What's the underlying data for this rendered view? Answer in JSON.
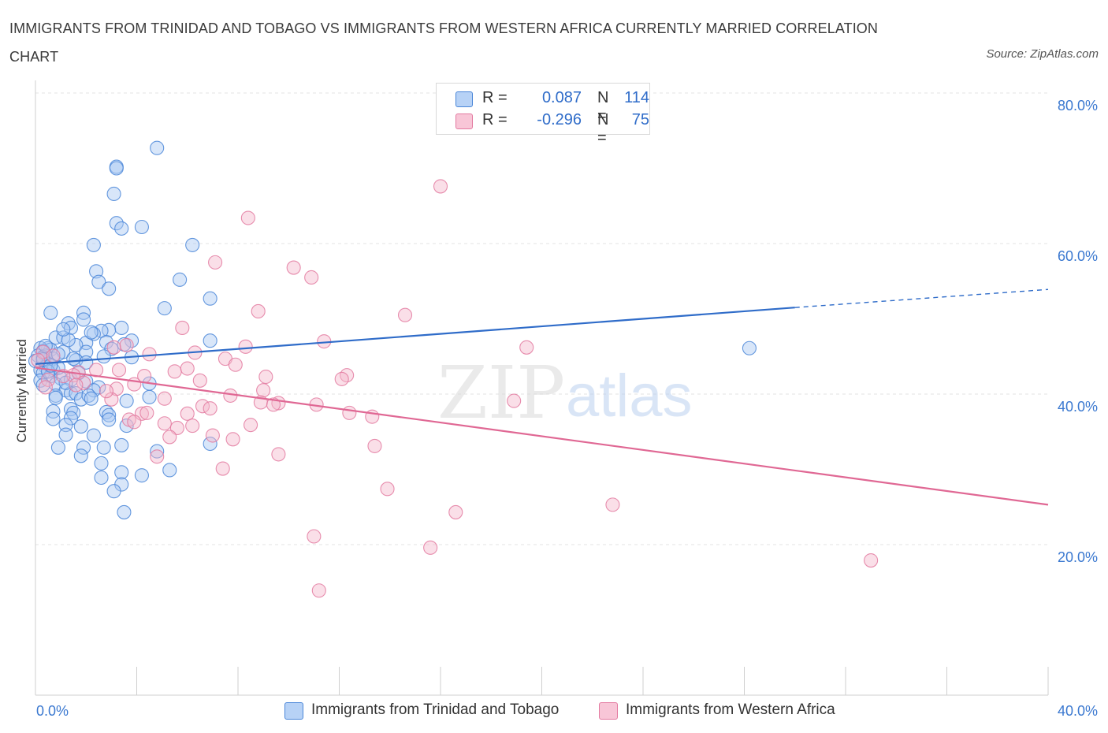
{
  "title": "IMMIGRANTS FROM TRINIDAD AND TOBAGO VS IMMIGRANTS FROM WESTERN AFRICA CURRENTLY MARRIED CORRELATION CHART",
  "source": "Source: ZipAtlas.com",
  "legend": {
    "rows": [
      {
        "r_label": "R =",
        "r_value": "0.087",
        "n_label": "N =",
        "n_value": "114"
      },
      {
        "r_label": "R =",
        "r_value": "-0.296",
        "n_label": "N =",
        "n_value": "75"
      }
    ]
  },
  "watermark": {
    "zip": "ZIP",
    "atlas": "atlas"
  },
  "chart_data": {
    "type": "scatter",
    "ylabel": "Currently Married",
    "xlabel": "",
    "xlim": [
      0,
      40
    ],
    "ylim": [
      0,
      80
    ],
    "x_tick_labels": [
      "0.0%",
      "40.0%"
    ],
    "y_tick_labels": [
      "80.0%",
      "60.0%",
      "40.0%",
      "20.0%"
    ],
    "y_ticks": [
      80,
      60,
      40,
      20
    ],
    "grid": true,
    "legend_position": "top-center",
    "colors": {
      "blue": "#4a86d8",
      "blue_fill": "#a9c8f2",
      "blue_line": "#2f6cc9",
      "pink": "#e37aa0",
      "pink_fill": "#f5b8cd",
      "pink_line": "#e06894",
      "axis_label": "#3a78d0",
      "grid": "#e3e3e3"
    },
    "series": [
      {
        "name": "Immigrants from Trinidad and Tobago",
        "color": "#4a86d8",
        "trend": {
          "x": [
            0,
            30
          ],
          "y": [
            44.0,
            51.5
          ],
          "dashed_to": [
            40,
            53.9
          ]
        },
        "points": [
          [
            4.8,
            72.7
          ],
          [
            3.2,
            70.2
          ],
          [
            3.2,
            70.0
          ],
          [
            3.1,
            66.6
          ],
          [
            3.2,
            62.7
          ],
          [
            3.4,
            62.0
          ],
          [
            4.2,
            62.2
          ],
          [
            2.3,
            59.8
          ],
          [
            6.2,
            59.8
          ],
          [
            2.4,
            56.3
          ],
          [
            5.7,
            55.2
          ],
          [
            2.5,
            54.9
          ],
          [
            2.9,
            54.0
          ],
          [
            6.9,
            52.7
          ],
          [
            5.1,
            51.4
          ],
          [
            1.9,
            50.8
          ],
          [
            1.9,
            49.9
          ],
          [
            1.3,
            49.4
          ],
          [
            1.4,
            48.8
          ],
          [
            3.4,
            48.8
          ],
          [
            2.9,
            48.5
          ],
          [
            2.6,
            48.4
          ],
          [
            2.3,
            48.0
          ],
          [
            0.8,
            47.5
          ],
          [
            1.1,
            47.5
          ],
          [
            3.8,
            47.1
          ],
          [
            6.9,
            47.1
          ],
          [
            2.8,
            46.9
          ],
          [
            2.0,
            46.8
          ],
          [
            3.5,
            46.6
          ],
          [
            1.6,
            46.5
          ],
          [
            0.5,
            46.1
          ],
          [
            0.2,
            46.1
          ],
          [
            0.6,
            45.9
          ],
          [
            0.3,
            45.7
          ],
          [
            2.0,
            45.6
          ],
          [
            1.1,
            45.6
          ],
          [
            0.1,
            45.1
          ],
          [
            0.4,
            45.1
          ],
          [
            0.3,
            44.9
          ],
          [
            0.7,
            44.7
          ],
          [
            1.6,
            44.5
          ],
          [
            0.0,
            44.4
          ],
          [
            3.8,
            44.9
          ],
          [
            0.5,
            44.0
          ],
          [
            0.4,
            43.6
          ],
          [
            0.2,
            43.2
          ],
          [
            0.7,
            43.2
          ],
          [
            0.3,
            42.8
          ],
          [
            0.6,
            42.4
          ],
          [
            1.0,
            42.1
          ],
          [
            0.2,
            41.8
          ],
          [
            1.4,
            41.9
          ],
          [
            0.8,
            41.3
          ],
          [
            2.0,
            41.7
          ],
          [
            2.5,
            40.9
          ],
          [
            4.5,
            41.4
          ],
          [
            1.2,
            40.5
          ],
          [
            2.3,
            40.5
          ],
          [
            0.3,
            41.2
          ],
          [
            1.4,
            40.1
          ],
          [
            1.6,
            40.1
          ],
          [
            0.8,
            39.8
          ],
          [
            0.8,
            39.5
          ],
          [
            1.8,
            39.3
          ],
          [
            2.1,
            39.8
          ],
          [
            2.2,
            39.4
          ],
          [
            3.6,
            39.1
          ],
          [
            4.5,
            39.6
          ],
          [
            1.4,
            38.0
          ],
          [
            0.7,
            37.7
          ],
          [
            1.5,
            37.5
          ],
          [
            2.8,
            37.6
          ],
          [
            2.9,
            37.2
          ],
          [
            0.7,
            36.7
          ],
          [
            1.4,
            36.8
          ],
          [
            2.9,
            36.6
          ],
          [
            1.2,
            35.9
          ],
          [
            1.8,
            35.7
          ],
          [
            3.6,
            35.8
          ],
          [
            1.2,
            34.6
          ],
          [
            2.3,
            34.5
          ],
          [
            3.4,
            33.2
          ],
          [
            0.9,
            32.9
          ],
          [
            1.9,
            32.9
          ],
          [
            2.7,
            32.9
          ],
          [
            4.8,
            32.4
          ],
          [
            6.9,
            33.4
          ],
          [
            1.8,
            31.8
          ],
          [
            2.6,
            30.8
          ],
          [
            4.2,
            29.2
          ],
          [
            5.3,
            29.9
          ],
          [
            2.6,
            28.9
          ],
          [
            3.4,
            29.6
          ],
          [
            3.4,
            28.0
          ],
          [
            3.1,
            27.1
          ],
          [
            3.5,
            24.3
          ],
          [
            28.2,
            46.1
          ],
          [
            0.6,
            50.8
          ],
          [
            1.5,
            44.7
          ],
          [
            0.9,
            43.5
          ],
          [
            2.2,
            48.2
          ],
          [
            3.0,
            46.0
          ],
          [
            1.7,
            42.8
          ],
          [
            0.4,
            46.4
          ],
          [
            1.3,
            47.2
          ],
          [
            2.7,
            45.0
          ],
          [
            0.9,
            45.3
          ],
          [
            0.5,
            43.0
          ],
          [
            1.2,
            41.5
          ],
          [
            2.0,
            44.2
          ],
          [
            1.1,
            48.6
          ],
          [
            0.3,
            44.6
          ],
          [
            0.6,
            43.8
          ]
        ]
      },
      {
        "name": "Immigrants from Western Africa",
        "color": "#e37aa0",
        "trend": {
          "x": [
            0,
            40
          ],
          "y": [
            43.5,
            25.3
          ]
        },
        "points": [
          [
            16.0,
            67.6
          ],
          [
            8.4,
            63.4
          ],
          [
            7.1,
            57.5
          ],
          [
            10.2,
            56.8
          ],
          [
            10.9,
            55.5
          ],
          [
            8.8,
            51.0
          ],
          [
            14.6,
            50.5
          ],
          [
            5.8,
            48.8
          ],
          [
            11.4,
            47.0
          ],
          [
            3.6,
            46.5
          ],
          [
            8.3,
            46.3
          ],
          [
            19.4,
            46.2
          ],
          [
            0.3,
            45.6
          ],
          [
            4.5,
            45.3
          ],
          [
            6.3,
            45.5
          ],
          [
            0.7,
            45.1
          ],
          [
            7.5,
            44.7
          ],
          [
            0.1,
            44.5
          ],
          [
            7.9,
            43.9
          ],
          [
            3.3,
            43.2
          ],
          [
            5.5,
            43.0
          ],
          [
            1.7,
            42.9
          ],
          [
            2.4,
            43.2
          ],
          [
            1.5,
            42.5
          ],
          [
            4.3,
            42.4
          ],
          [
            9.1,
            42.3
          ],
          [
            12.3,
            42.5
          ],
          [
            12.1,
            42.0
          ],
          [
            0.5,
            41.9
          ],
          [
            6.5,
            41.8
          ],
          [
            1.9,
            41.5
          ],
          [
            1.6,
            41.2
          ],
          [
            0.4,
            40.9
          ],
          [
            3.9,
            41.3
          ],
          [
            3.2,
            40.7
          ],
          [
            9.0,
            40.5
          ],
          [
            7.7,
            39.8
          ],
          [
            5.1,
            39.4
          ],
          [
            3.0,
            39.3
          ],
          [
            8.9,
            38.9
          ],
          [
            9.6,
            38.8
          ],
          [
            9.4,
            38.6
          ],
          [
            11.1,
            38.6
          ],
          [
            6.6,
            38.4
          ],
          [
            6.9,
            38.1
          ],
          [
            12.4,
            37.5
          ],
          [
            4.2,
            37.4
          ],
          [
            6.0,
            37.4
          ],
          [
            13.3,
            37.0
          ],
          [
            3.7,
            36.6
          ],
          [
            3.9,
            36.3
          ],
          [
            5.1,
            36.1
          ],
          [
            5.6,
            35.5
          ],
          [
            6.2,
            35.8
          ],
          [
            8.5,
            35.9
          ],
          [
            18.9,
            39.1
          ],
          [
            7.0,
            34.5
          ],
          [
            7.8,
            34.0
          ],
          [
            5.3,
            34.3
          ],
          [
            13.4,
            33.1
          ],
          [
            9.6,
            32.0
          ],
          [
            4.8,
            31.7
          ],
          [
            7.4,
            30.1
          ],
          [
            13.9,
            27.4
          ],
          [
            22.8,
            25.3
          ],
          [
            16.6,
            24.3
          ],
          [
            11.0,
            21.1
          ],
          [
            15.6,
            19.6
          ],
          [
            33.0,
            17.9
          ],
          [
            11.2,
            13.9
          ],
          [
            3.1,
            46.2
          ],
          [
            6.0,
            43.4
          ],
          [
            2.8,
            40.4
          ],
          [
            1.1,
            42.4
          ],
          [
            4.4,
            37.5
          ]
        ]
      }
    ]
  },
  "bottom_legend": [
    {
      "label": "Immigrants from Trinidad and Tobago"
    },
    {
      "label": "Immigrants from Western Africa"
    }
  ]
}
